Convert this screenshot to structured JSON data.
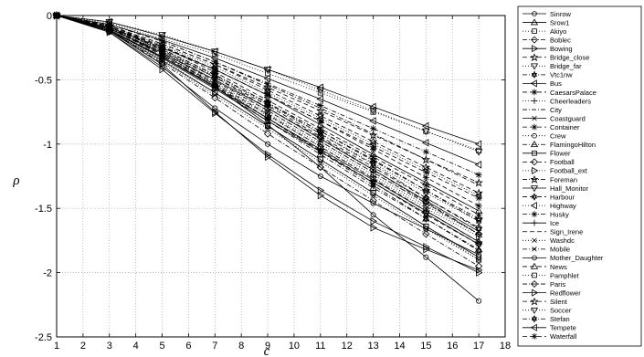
{
  "chart_data": {
    "type": "line",
    "title": "",
    "xlabel": "c",
    "ylabel": "ρ",
    "xlim": [
      1,
      18
    ],
    "ylim": [
      -2.5,
      0
    ],
    "grid": true,
    "legend_position": "right (outside plot)",
    "x": [
      1,
      3,
      5,
      7,
      9,
      11,
      13,
      15,
      17
    ],
    "xticks": [
      "1",
      "2",
      "3",
      "4",
      "5",
      "6",
      "7",
      "8",
      "9",
      "10",
      "11",
      "12",
      "13",
      "14",
      "15",
      "16",
      "17",
      "18"
    ],
    "yticks": [
      "0",
      "-0.5",
      "-1",
      "-1.5",
      "-2",
      "-2.5"
    ],
    "series": [
      {
        "name": "Sinrow",
        "marker": "circle",
        "dash": "solid",
        "values": [
          0,
          -0.12,
          -0.32,
          -0.55,
          -0.85,
          -1.18,
          -1.55,
          -1.88,
          -2.22
        ]
      },
      {
        "name": "Srow1",
        "marker": "triangle-up",
        "dash": "solid",
        "values": [
          0,
          -0.09,
          -0.25,
          -0.42,
          -0.62,
          -0.85,
          -1.08,
          -1.3,
          -1.52
        ]
      },
      {
        "name": "Akiyo",
        "marker": "square",
        "dash": "dotted",
        "values": [
          0,
          -0.06,
          -0.18,
          -0.3,
          -0.45,
          -0.6,
          -0.75,
          -0.9,
          -1.05
        ]
      },
      {
        "name": "Boblec",
        "marker": "diamond",
        "dash": "dashdot",
        "values": [
          0,
          -0.1,
          -0.28,
          -0.48,
          -0.72,
          -0.95,
          -1.2,
          -1.45,
          -1.7
        ]
      },
      {
        "name": "Bowing",
        "marker": "triangle-right",
        "dash": "solid",
        "values": [
          0,
          -0.12,
          -0.38,
          -0.75,
          -1.1,
          -1.4,
          -1.65,
          -1.82,
          -1.98
        ]
      },
      {
        "name": "Bridge_close",
        "marker": "star",
        "dash": "dashed",
        "values": [
          0,
          -0.08,
          -0.22,
          -0.38,
          -0.58,
          -0.78,
          -0.98,
          -1.18,
          -1.38
        ]
      },
      {
        "name": "Bridge_far",
        "marker": "triangle-down",
        "dash": "dotted",
        "values": [
          0,
          -0.05,
          -0.15,
          -0.28,
          -0.42,
          -0.58,
          -0.74,
          -0.9,
          -1.06
        ]
      },
      {
        "name": "Vtc1nw",
        "marker": "hexagram",
        "dash": "dashdot",
        "values": [
          0,
          -0.1,
          -0.26,
          -0.46,
          -0.68,
          -0.92,
          -1.16,
          -1.42,
          -1.66
        ]
      },
      {
        "name": "Bus",
        "marker": "triangle-left",
        "dash": "solid",
        "values": [
          0,
          -0.05,
          -0.16,
          -0.28,
          -0.42,
          -0.56,
          -0.71,
          -0.86,
          -1.0
        ]
      },
      {
        "name": "CaesarsPalace",
        "marker": "asterisk",
        "dash": "dashed",
        "values": [
          0,
          -0.09,
          -0.24,
          -0.42,
          -0.62,
          -0.82,
          -1.04,
          -1.26,
          -1.48
        ]
      },
      {
        "name": "Cheerleaders",
        "marker": "plus",
        "dash": "dotted",
        "values": [
          0,
          -0.1,
          -0.28,
          -0.5,
          -0.74,
          -0.98,
          -1.22,
          -1.46,
          -1.7
        ]
      },
      {
        "name": "City",
        "marker": "none",
        "dash": "dashdot",
        "values": [
          0,
          -0.07,
          -0.2,
          -0.36,
          -0.54,
          -0.72,
          -0.92,
          -1.12,
          -1.32
        ]
      },
      {
        "name": "Coastguard",
        "marker": "x",
        "dash": "solid",
        "values": [
          0,
          -0.1,
          -0.29,
          -0.5,
          -0.72,
          -0.96,
          -1.2,
          -1.44,
          -1.68
        ]
      },
      {
        "name": "Container",
        "marker": "asterisk",
        "dash": "dashed",
        "values": [
          0,
          -0.08,
          -0.24,
          -0.44,
          -0.66,
          -0.88,
          -1.1,
          -1.32,
          -1.55
        ]
      },
      {
        "name": "Crew",
        "marker": "circle",
        "dash": "dotted",
        "values": [
          0,
          -0.1,
          -0.3,
          -0.52,
          -0.76,
          -1.0,
          -1.24,
          -1.48,
          -1.7
        ]
      },
      {
        "name": "FlamingoHilton",
        "marker": "triangle-up",
        "dash": "dashdot",
        "values": [
          0,
          -0.11,
          -0.32,
          -0.56,
          -0.82,
          -1.08,
          -1.34,
          -1.58,
          -1.82
        ]
      },
      {
        "name": "Flower",
        "marker": "square",
        "dash": "solid",
        "values": [
          0,
          -0.12,
          -0.35,
          -0.6,
          -0.86,
          -1.12,
          -1.38,
          -1.64,
          -1.88
        ]
      },
      {
        "name": "Football",
        "marker": "diamond",
        "dash": "dashed",
        "values": [
          0,
          -0.09,
          -0.27,
          -0.48,
          -0.7,
          -0.94,
          -1.18,
          -1.42,
          -1.65
        ]
      },
      {
        "name": "Football_ext",
        "marker": "triangle-right",
        "dash": "dotted",
        "values": [
          0,
          -0.1,
          -0.3,
          -0.54,
          -0.78,
          -1.02,
          -1.26,
          -1.5,
          -1.72
        ]
      },
      {
        "name": "Foreman",
        "marker": "star",
        "dash": "dashdot",
        "values": [
          0,
          -0.09,
          -0.26,
          -0.46,
          -0.68,
          -0.9,
          -1.12,
          -1.36,
          -1.58
        ]
      },
      {
        "name": "Hall_Monitor",
        "marker": "triangle-down",
        "dash": "solid",
        "values": [
          0,
          -0.11,
          -0.33,
          -0.57,
          -0.82,
          -1.06,
          -1.3,
          -1.54,
          -1.78
        ]
      },
      {
        "name": "Harbour",
        "marker": "hexagram",
        "dash": "dashed",
        "values": [
          0,
          -0.1,
          -0.31,
          -0.55,
          -0.8,
          -1.05,
          -1.3,
          -1.55,
          -1.78
        ]
      },
      {
        "name": "Highway",
        "marker": "triangle-left",
        "dash": "dotted",
        "values": [
          0,
          -0.08,
          -0.23,
          -0.4,
          -0.6,
          -0.8,
          -1.0,
          -1.2,
          -1.4
        ]
      },
      {
        "name": "Husky",
        "marker": "asterisk",
        "dash": "dashdot",
        "values": [
          0,
          -0.07,
          -0.2,
          -0.36,
          -0.53,
          -0.7,
          -0.88,
          -1.06,
          -1.24
        ]
      },
      {
        "name": "Ice",
        "marker": "plus",
        "dash": "solid",
        "values": [
          0,
          -0.11,
          -0.32,
          -0.56,
          -0.8,
          -1.04,
          -1.28,
          -1.52,
          -1.76
        ]
      },
      {
        "name": "Sign_Irene",
        "marker": "none",
        "dash": "dashed",
        "values": [
          0,
          -0.1,
          -0.29,
          -0.51,
          -0.74,
          -0.98,
          -1.22,
          -1.46,
          -1.7
        ]
      },
      {
        "name": "Washdc",
        "marker": "x",
        "dash": "dotted",
        "values": [
          0,
          -0.12,
          -0.36,
          -0.62,
          -0.88,
          -1.14,
          -1.4,
          -1.66,
          -1.9
        ]
      },
      {
        "name": "Mobile",
        "marker": "x",
        "dash": "dashdot",
        "values": [
          0,
          -0.09,
          -0.26,
          -0.46,
          -0.68,
          -0.9,
          -1.13,
          -1.36,
          -1.6
        ]
      },
      {
        "name": "Mother_Daughter",
        "marker": "circle",
        "dash": "solid",
        "values": [
          0,
          -0.13,
          -0.4,
          -0.72,
          -1.0,
          -1.25,
          -1.46,
          -1.66,
          -1.86
        ]
      },
      {
        "name": "News",
        "marker": "triangle-up",
        "dash": "dashed",
        "values": [
          0,
          -0.1,
          -0.3,
          -0.53,
          -0.77,
          -1.02,
          -1.27,
          -1.52,
          -1.76
        ]
      },
      {
        "name": "Pamphlet",
        "marker": "square",
        "dash": "dotted",
        "values": [
          0,
          -0.11,
          -0.34,
          -0.6,
          -0.86,
          -1.12,
          -1.38,
          -1.64,
          -1.9
        ]
      },
      {
        "name": "Paris",
        "marker": "diamond",
        "dash": "dashdot",
        "values": [
          0,
          -0.12,
          -0.37,
          -0.64,
          -0.92,
          -1.18,
          -1.44,
          -1.7,
          -1.95
        ]
      },
      {
        "name": "Redflower",
        "marker": "triangle-right",
        "dash": "solid",
        "values": [
          0,
          -0.13,
          -0.42,
          -0.76,
          -1.08,
          -1.36,
          -1.6,
          -1.8,
          -2.0
        ]
      },
      {
        "name": "Silent",
        "marker": "star",
        "dash": "dashed",
        "values": [
          0,
          -0.08,
          -0.22,
          -0.38,
          -0.56,
          -0.74,
          -0.93,
          -1.12,
          -1.3
        ]
      },
      {
        "name": "Soccer",
        "marker": "triangle-down",
        "dash": "dotted",
        "values": [
          0,
          -0.09,
          -0.27,
          -0.47,
          -0.69,
          -0.92,
          -1.15,
          -1.38,
          -1.6
        ]
      },
      {
        "name": "Stefan",
        "marker": "hexagram",
        "dash": "dashdot",
        "values": [
          0,
          -0.1,
          -0.3,
          -0.54,
          -0.8,
          -1.06,
          -1.32,
          -1.58,
          -1.83
        ]
      },
      {
        "name": "Tempete",
        "marker": "triangle-left",
        "dash": "solid",
        "values": [
          0,
          -0.07,
          -0.19,
          -0.33,
          -0.49,
          -0.65,
          -0.82,
          -0.99,
          -1.16
        ]
      },
      {
        "name": "Waterfall",
        "marker": "asterisk",
        "dash": "dashed",
        "values": [
          0,
          -0.08,
          -0.24,
          -0.42,
          -0.62,
          -0.82,
          -1.02,
          -1.22,
          -1.42
        ]
      }
    ]
  }
}
